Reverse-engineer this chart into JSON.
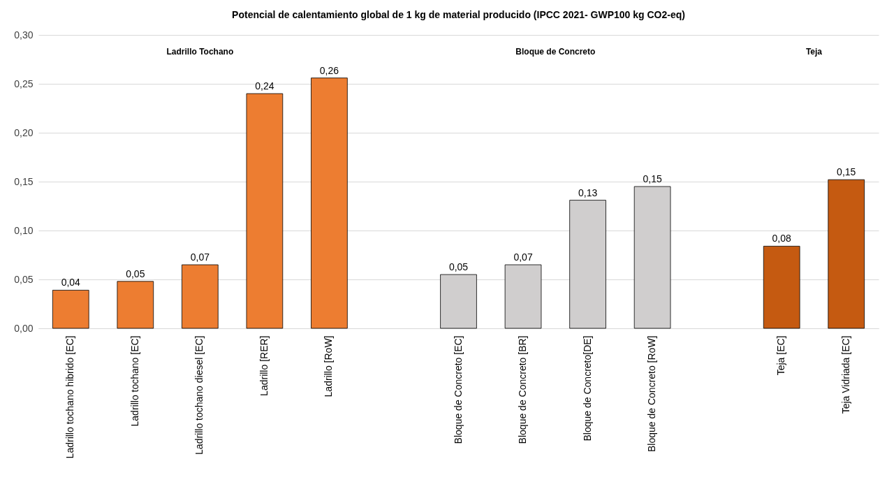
{
  "chart_data": {
    "type": "bar",
    "title": "Potencial de calentamiento global de 1 kg de material producido (IPCC 2021- GWP100 kg CO2-eq)",
    "categories": [
      "Ladrillo tochano hibrido [EC]",
      "Ladrillo tochano [EC]",
      "Ladrillo tochano diesel [EC]",
      "Ladrillo [RER]",
      "Ladrillo [RoW]",
      null,
      "Bloque de Concreto [EC]",
      "Bloque de Concreto [BR]",
      "Bloque de Concreto[DE]",
      "Bloque de Concreto [RoW]",
      null,
      "Teja [EC]",
      "Teja Vidriada [EC]"
    ],
    "values": [
      0.039,
      0.048,
      0.065,
      0.24,
      0.256,
      null,
      0.055,
      0.065,
      0.131,
      0.145,
      null,
      0.084,
      0.152
    ],
    "value_labels": [
      "0,04",
      "0,05",
      "0,07",
      "0,24",
      "0,26",
      null,
      "0,05",
      "0,07",
      "0,13",
      "0,15",
      null,
      "0,08",
      "0,15"
    ],
    "colors": [
      "#ed7d31",
      "#ed7d31",
      "#ed7d31",
      "#ed7d31",
      "#ed7d31",
      null,
      "#d0cece",
      "#d0cece",
      "#d0cece",
      "#d0cece",
      null,
      "#c55a11",
      "#c55a11"
    ],
    "annotations": [
      "Ladrillo Tochano",
      "Bloque de Concreto",
      "Teja"
    ],
    "ylim": [
      0,
      0.3
    ],
    "yticks": [
      {
        "value": 0,
        "label": "0,00"
      },
      {
        "value": 0.05,
        "label": "0,05"
      },
      {
        "value": 0.1,
        "label": "0,10"
      },
      {
        "value": 0.15,
        "label": "0,15"
      },
      {
        "value": 0.2,
        "label": "0,20"
      },
      {
        "value": 0.25,
        "label": "0,25"
      },
      {
        "value": 0.3,
        "label": "0,30"
      }
    ],
    "grid": "y"
  }
}
